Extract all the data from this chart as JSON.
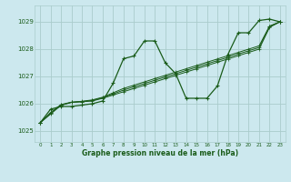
{
  "background_color": "#cce8ee",
  "grid_color": "#aacccc",
  "line_color": "#1a5c1a",
  "title": "Graphe pression niveau de la mer (hPa)",
  "xlim": [
    -0.5,
    23.5
  ],
  "ylim": [
    1024.6,
    1029.6
  ],
  "yticks": [
    1025,
    1026,
    1027,
    1028,
    1029
  ],
  "xticks": [
    0,
    1,
    2,
    3,
    4,
    5,
    6,
    7,
    8,
    9,
    10,
    11,
    12,
    13,
    14,
    15,
    16,
    17,
    18,
    19,
    20,
    21,
    22,
    23
  ],
  "series_main": [
    1025.3,
    1025.8,
    1025.9,
    1025.9,
    1025.95,
    1026.0,
    1026.1,
    1026.75,
    1027.65,
    1027.75,
    1028.3,
    1028.3,
    1027.5,
    1027.1,
    1026.2,
    1026.2,
    1026.2,
    1026.65,
    1027.8,
    1028.6,
    1028.6,
    1029.05,
    1029.1,
    1029.0
  ],
  "series_linear1": [
    1025.3,
    1025.62,
    1025.94,
    1026.05,
    1026.07,
    1026.1,
    1026.2,
    1026.32,
    1026.44,
    1026.56,
    1026.68,
    1026.8,
    1026.92,
    1027.04,
    1027.16,
    1027.28,
    1027.4,
    1027.52,
    1027.64,
    1027.76,
    1027.88,
    1028.0,
    1028.8,
    1029.0
  ],
  "series_linear2": [
    1025.3,
    1025.65,
    1025.95,
    1026.05,
    1026.08,
    1026.12,
    1026.22,
    1026.36,
    1026.5,
    1026.62,
    1026.74,
    1026.86,
    1026.98,
    1027.1,
    1027.22,
    1027.34,
    1027.46,
    1027.58,
    1027.7,
    1027.82,
    1027.94,
    1028.06,
    1028.82,
    1029.0
  ],
  "series_linear3": [
    1025.3,
    1025.68,
    1025.97,
    1026.06,
    1026.09,
    1026.14,
    1026.24,
    1026.4,
    1026.56,
    1026.68,
    1026.8,
    1026.92,
    1027.04,
    1027.16,
    1027.28,
    1027.4,
    1027.52,
    1027.64,
    1027.76,
    1027.88,
    1028.0,
    1028.12,
    1028.85,
    1029.0
  ]
}
